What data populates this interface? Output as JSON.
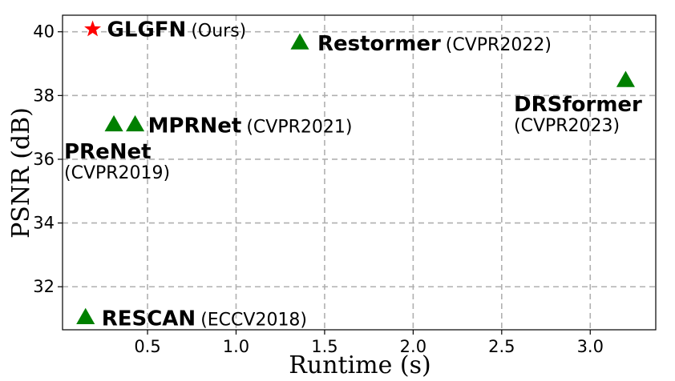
{
  "chart_data": {
    "type": "scatter",
    "xlabel": "Runtime (s)",
    "ylabel": "PSNR (dB)",
    "xlim": [
      0.02,
      3.37
    ],
    "ylim": [
      30.65,
      40.52
    ],
    "xticks": [
      0.5,
      1.0,
      1.5,
      2.0,
      2.5,
      3.0
    ],
    "xtick_labels": [
      "0.5",
      "1.0",
      "1.5",
      "2.0",
      "2.5",
      "3.0"
    ],
    "yticks": [
      32,
      34,
      36,
      38,
      40
    ],
    "ytick_labels": [
      "32",
      "34",
      "36",
      "38",
      "40"
    ],
    "grid": true,
    "points": [
      {
        "name": "GLGFN",
        "venue": "(Ours)",
        "x": 0.19,
        "y": 40.08,
        "marker": "star",
        "color": "#ff0000"
      },
      {
        "name": "Restormer",
        "venue": "(CVPR2022)",
        "x": 1.36,
        "y": 39.66,
        "marker": "triangle",
        "color": "#008000"
      },
      {
        "name": "DRSformer",
        "venue": "(CVPR2023)",
        "x": 3.2,
        "y": 38.48,
        "marker": "triangle",
        "color": "#008000"
      },
      {
        "name": "MPRNet",
        "venue": "(CVPR2021)",
        "x": 0.43,
        "y": 37.09,
        "marker": "triangle",
        "color": "#008000"
      },
      {
        "name": "PReNet",
        "venue": "(CVPR2019)",
        "x": 0.31,
        "y": 37.09,
        "marker": "triangle",
        "color": "#008000"
      },
      {
        "name": "RESCAN",
        "venue": "(ECCV2018)",
        "x": 0.15,
        "y": 31.04,
        "marker": "triangle",
        "color": "#008000"
      }
    ]
  }
}
